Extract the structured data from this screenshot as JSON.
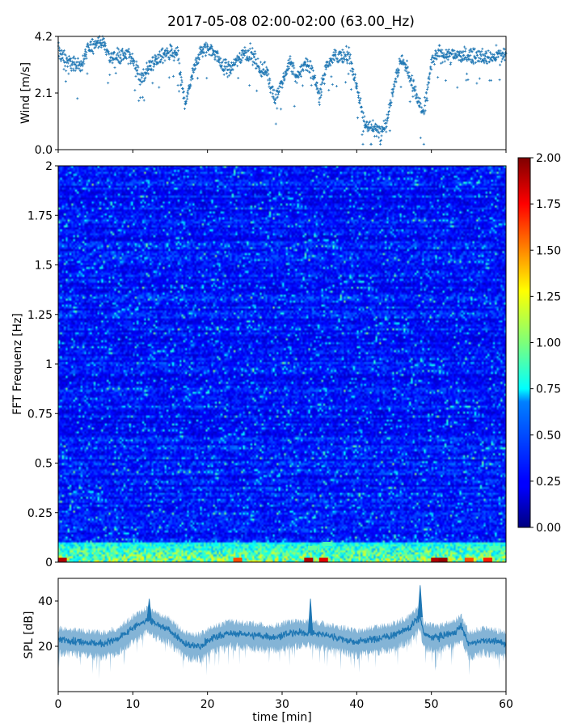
{
  "figure": {
    "title": "2017-05-08 02:00-02:00 (63.00_Hz)"
  },
  "chart_data": [
    {
      "type": "scatter",
      "ylabel": "Wind [m/s]",
      "xlabel": "",
      "xlim": [
        0,
        60
      ],
      "ylim": [
        0,
        4.2
      ],
      "y_ticks": [
        "0.0",
        "2.1",
        "4.2"
      ],
      "x_ticks": [
        0,
        10,
        20,
        30,
        40,
        50,
        60
      ],
      "marker": "+",
      "color": "#1f77b4",
      "grid": false,
      "points_per_minute": 25,
      "mean_profile": [
        {
          "x": 0,
          "y": 3.7
        },
        {
          "x": 1,
          "y": 3.3
        },
        {
          "x": 2,
          "y": 3.2
        },
        {
          "x": 3,
          "y": 3.1
        },
        {
          "x": 4,
          "y": 3.7
        },
        {
          "x": 5,
          "y": 4.0
        },
        {
          "x": 6,
          "y": 4.0
        },
        {
          "x": 7,
          "y": 3.4
        },
        {
          "x": 8,
          "y": 3.5
        },
        {
          "x": 9,
          "y": 3.5
        },
        {
          "x": 10,
          "y": 3.4
        },
        {
          "x": 11,
          "y": 2.6
        },
        {
          "x": 12,
          "y": 3.0
        },
        {
          "x": 13,
          "y": 3.3
        },
        {
          "x": 14,
          "y": 3.5
        },
        {
          "x": 15,
          "y": 3.6
        },
        {
          "x": 16,
          "y": 3.5
        },
        {
          "x": 17,
          "y": 1.6
        },
        {
          "x": 18,
          "y": 2.8
        },
        {
          "x": 19,
          "y": 3.6
        },
        {
          "x": 20,
          "y": 3.8
        },
        {
          "x": 21,
          "y": 3.6
        },
        {
          "x": 22,
          "y": 3.1
        },
        {
          "x": 23,
          "y": 3.0
        },
        {
          "x": 24,
          "y": 3.3
        },
        {
          "x": 25,
          "y": 3.6
        },
        {
          "x": 26,
          "y": 3.5
        },
        {
          "x": 27,
          "y": 3.0
        },
        {
          "x": 28,
          "y": 2.9
        },
        {
          "x": 29,
          "y": 1.9
        },
        {
          "x": 30,
          "y": 2.4
        },
        {
          "x": 31,
          "y": 3.3
        },
        {
          "x": 32,
          "y": 2.6
        },
        {
          "x": 33,
          "y": 3.2
        },
        {
          "x": 34,
          "y": 3.0
        },
        {
          "x": 35,
          "y": 2.0
        },
        {
          "x": 36,
          "y": 3.2
        },
        {
          "x": 37,
          "y": 3.5
        },
        {
          "x": 38,
          "y": 3.4
        },
        {
          "x": 39,
          "y": 3.5
        },
        {
          "x": 40,
          "y": 2.4
        },
        {
          "x": 41,
          "y": 1.0
        },
        {
          "x": 42,
          "y": 0.8
        },
        {
          "x": 43,
          "y": 0.7
        },
        {
          "x": 44,
          "y": 1.0
        },
        {
          "x": 45,
          "y": 2.5
        },
        {
          "x": 46,
          "y": 3.4
        },
        {
          "x": 47,
          "y": 2.8
        },
        {
          "x": 48,
          "y": 2.0
        },
        {
          "x": 49,
          "y": 1.3
        },
        {
          "x": 50,
          "y": 3.2
        },
        {
          "x": 51,
          "y": 3.6
        },
        {
          "x": 52,
          "y": 3.5
        },
        {
          "x": 53,
          "y": 3.5
        },
        {
          "x": 54,
          "y": 3.5
        },
        {
          "x": 55,
          "y": 3.5
        },
        {
          "x": 56,
          "y": 3.5
        },
        {
          "x": 57,
          "y": 3.4
        },
        {
          "x": 58,
          "y": 3.4
        },
        {
          "x": 59,
          "y": 3.5
        },
        {
          "x": 60,
          "y": 3.5
        }
      ]
    },
    {
      "type": "heatmap",
      "ylabel": "FFT Frequenz [Hz]",
      "xlabel": "",
      "xlim": [
        0,
        60
      ],
      "ylim": [
        0,
        2
      ],
      "y_ticks": [
        "0",
        "0.25",
        "0.5",
        "0.75",
        "1",
        "1.25",
        "1.5",
        "1.75",
        "2"
      ],
      "colormap": "jet",
      "value_range": [
        0,
        2
      ],
      "colorbar_ticks": [
        "0.00",
        "0.25",
        "0.50",
        "0.75",
        "1.00",
        "1.25",
        "1.50",
        "1.75",
        "2.00"
      ],
      "time_bins": 240,
      "freq_bins": 200,
      "typical_value": 0.28,
      "low_frequency_band": {
        "freq_max": 0.1,
        "value_range": [
          0.6,
          1.4
        ]
      },
      "hot_spots": [
        {
          "x": 33.5,
          "y": 0.01,
          "value": 1.9
        },
        {
          "x": 35.5,
          "y": 0.01,
          "value": 1.8
        },
        {
          "x": 50.5,
          "y": 0.01,
          "value": 1.9
        },
        {
          "x": 51.5,
          "y": 0.01,
          "value": 1.95
        },
        {
          "x": 55.0,
          "y": 0.01,
          "value": 1.6
        },
        {
          "x": 57.5,
          "y": 0.01,
          "value": 1.7
        },
        {
          "x": 0.5,
          "y": 0.01,
          "value": 1.9
        },
        {
          "x": 24.0,
          "y": 0.01,
          "value": 1.6
        },
        {
          "x": 34.0,
          "y": 0.07,
          "value": 0.95
        },
        {
          "x": 36.0,
          "y": 0.09,
          "value": 0.9
        },
        {
          "x": 58.5,
          "y": 0.07,
          "value": 0.9
        }
      ]
    },
    {
      "type": "area",
      "ylabel": "SPL [dB]",
      "xlabel": "time [min]",
      "xlim": [
        0,
        60
      ],
      "ylim": [
        0,
        50
      ],
      "y_ticks": [
        "20",
        "40"
      ],
      "x_ticks": [
        "0",
        "10",
        "20",
        "30",
        "40",
        "50",
        "60"
      ],
      "color": "#1f77b4",
      "mean_profile": [
        {
          "x": 0,
          "y": 23
        },
        {
          "x": 3,
          "y": 22
        },
        {
          "x": 6,
          "y": 21
        },
        {
          "x": 8,
          "y": 23
        },
        {
          "x": 10,
          "y": 28
        },
        {
          "x": 12,
          "y": 32
        },
        {
          "x": 13,
          "y": 30
        },
        {
          "x": 15,
          "y": 27
        },
        {
          "x": 17,
          "y": 21
        },
        {
          "x": 19,
          "y": 20
        },
        {
          "x": 21,
          "y": 24
        },
        {
          "x": 23,
          "y": 26
        },
        {
          "x": 26,
          "y": 25
        },
        {
          "x": 29,
          "y": 24
        },
        {
          "x": 31,
          "y": 26
        },
        {
          "x": 34,
          "y": 26
        },
        {
          "x": 37,
          "y": 24
        },
        {
          "x": 40,
          "y": 22
        },
        {
          "x": 42,
          "y": 23
        },
        {
          "x": 45,
          "y": 25
        },
        {
          "x": 47,
          "y": 28
        },
        {
          "x": 48.5,
          "y": 33
        },
        {
          "x": 49,
          "y": 25
        },
        {
          "x": 51,
          "y": 24
        },
        {
          "x": 53,
          "y": 26
        },
        {
          "x": 54,
          "y": 29
        },
        {
          "x": 55,
          "y": 21
        },
        {
          "x": 57,
          "y": 23
        },
        {
          "x": 60,
          "y": 21
        }
      ],
      "spikes": [
        {
          "x": 48.5,
          "y": 47
        },
        {
          "x": 12.2,
          "y": 41
        },
        {
          "x": 33.8,
          "y": 41
        }
      ]
    }
  ]
}
